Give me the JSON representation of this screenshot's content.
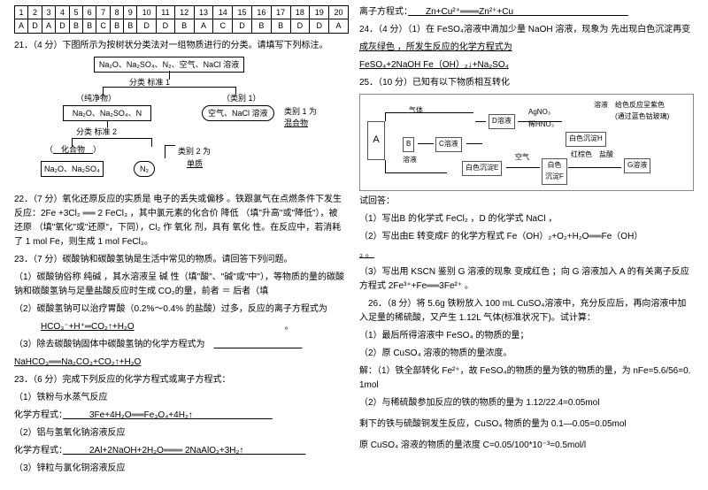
{
  "answer_table": {
    "nums": [
      "1",
      "2",
      "3",
      "4",
      "5",
      "6",
      "7",
      "8",
      "9",
      "10",
      "11",
      "12",
      "13",
      "14",
      "15",
      "16",
      "17",
      "18",
      "19",
      "20"
    ],
    "letters": [
      "A",
      "D",
      "A",
      "D",
      "B",
      "B",
      "C",
      "B",
      "B",
      "D",
      "D",
      "B",
      "A",
      "C",
      "D",
      "B",
      "B",
      "D",
      "D",
      "A"
    ]
  },
  "q21": {
    "title": "21．（4 分）下图所示为按树状分类法对一组物质进行的分类。请填写下列标注。",
    "top": "Na₂O、Na₂SO₄、N₂、空气、NaCl 溶液",
    "l1": "分类  标准 1",
    "pure": "（纯净物）",
    "mid": "Na₂O、Na₂SO₄、N",
    "right1": "空气、NaCl 溶液",
    "cat1": "（类别 1）",
    "cat1v": "类别 1 为",
    "cat1v2": "混合物",
    "l2": "分类  标准 2",
    "comp": "（  化合物  ）",
    "cat2": "类别 2 为",
    "cat2v": "单质",
    "b1": "Na₂O、Na₂SO₄",
    "b2": "N₂"
  },
  "q22": {
    "p1": "22．（7 分）氧化还原反应的实质是   电子的丢失或偏移   。铁跟氯气在点燃条件下发生反应：2Fe +3Cl₂",
    "p1b": " 2 FeCl₃ ，其中氯元素的化合价  降低  （填\"升高\"或\"降低\"），被  还原  （填\"氧化\"或\"还原\"，下同），Cl₂ 作   氧化   剂，具有   氧化   性。在反应中，若消耗了 1 mol Fe，则生成   1   mol FeCl₃。",
    "p2": "23．（7 分）碳酸钠和碳酸氢钠是生活中常见的物质。请回答下列问题。",
    "p2a": "（1）碳酸钠俗称   纯碱   ，其水溶液呈   碱   性（填\"酸\"、\"碱\"或\"中\"），等物质的量的碳酸钠和碳酸氢钠与足量盐酸反应时生成 CO₂的量，前者 ＝ 后者（填",
    "p2b": "（2）碳酸氢钠可以治疗胃酸（0.2%～0.4% 的盐酸）过多，反应的离子方程式为",
    "eq1": "HCO₃⁻+H⁺═CO₂↑+H₂O",
    "p2c": "（3）除去碳酸钠固体中碳酸氢钠的化学方程式为",
    "eq2": "NaHCO₃══Na₂CO₃+CO₂↑+H₂O"
  },
  "q23": {
    "title": "23．（6 分）完成下列反应的化学方程式或离子方程式：",
    "a": "（1）铁粉与水蒸气反应",
    "al": "化学方程式：",
    "av": "3Fe+4H₂O══Fe₃O₄+4H₂↑",
    "b": "（2）铝与氢氧化钠溶液反应",
    "bl": "化学方程式：",
    "bv": "2Al+2NaOH+2H₂O═══ 2NaAlO₂+3H₂↑",
    "c": "（3）锌粒与氯化铜溶液反应"
  },
  "col2": {
    "ion": "离子方程式：",
    "ionv": "Zn+Cu²⁺═══Zn²⁺+Cu",
    "q24": "24．（4 分）（1）在 FeSO₄溶液中滴加少量 NaOH 溶液，现象为   先出现白色沉淀再变",
    "q24b": "成灰绿色   ，所发生反应的化学方程式为",
    "q24eq": "FeSO₄+2NaOH       Fe（OH）₂↓+Na₂SO₄",
    "q25": "25．（10 分）已知有以下物质相互转化",
    "d": {
      "gas": "气体",
      "sol": "溶液",
      "A": "A",
      "B": "B",
      "Csol": "C溶液",
      "Dsol": "D溶液",
      "agno3": "AgNO₃",
      "hno3": "稀HNO₃",
      "whiteE": "白色沉淀E",
      "whiteF": "白色\n沉淀F",
      "Gsol": "G溶液",
      "redH": "红棕色　盐酸",
      "whiteI": "白色沉淀H",
      "kongqi": "空气",
      "blue": "溶液　给色反应呈紫色\n　　　(通过蓝色钴玻璃)"
    },
    "q25a": "试回答：",
    "q25b": "（1）写出B 的化学式   FeCl₂   ，D 的化学式   NaCl   ，",
    "q25c": "（2）写出由E 转变成F 的化学方程式   Fe（OH）₂+O₂+H₂O══Fe（OH）",
    "q25d": "₃                                                              。",
    "q25e": "（3）写出用 KSCN 鉴别 G 溶液的现象   变成红色    ；向 G 溶液加入 A 的有关离子反应方程式   2Fe³⁺+Fe══3Fe²⁺                。",
    "q26": "　26．（8 分）将 5.6g 铁粉放入 100 mL CuSO₄溶液中，充分反应后，再向溶液中加入足量的稀硫酸，又产生 1.12L 气体(标准状况下)。试计算：",
    "q26a": "（1）最后所得溶液中 FeSO₄ 的物质的量；",
    "q26b": "（2）原 CuSO₄ 溶液的物质的量浓度。",
    "sol1": "解：（1）铁全部转化 Fe²⁺，故 FeSO₄的物质的量为铁的物质的量，为 nFe=5.6/56=0.1mol",
    "sol2": "（2）与稀硫酸参加反应的铁的物质的量为 1.12/22.4=0.05mol",
    "sol3": "剩下的铁与硫酸铜发生反应，CuSO₄ 物质的量为 0.1—0.05=0.05mol",
    "sol4": "原 CuSO₄ 溶液的物质的量浓度 C=0.05/100*10⁻³=0.5mol/l"
  }
}
